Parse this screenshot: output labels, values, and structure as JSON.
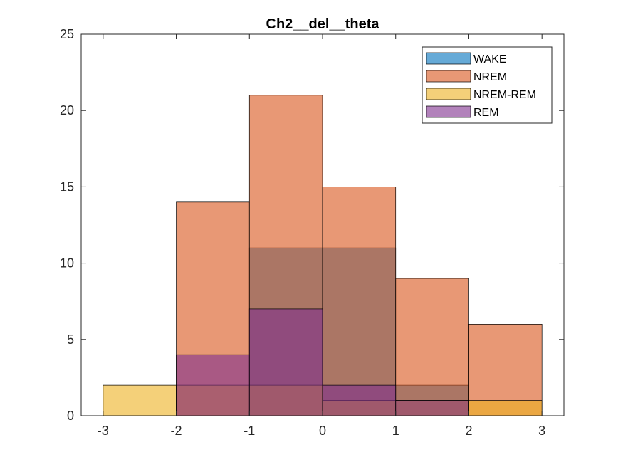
{
  "chart_data": {
    "type": "bar",
    "title": "Ch2__del__theta",
    "xlabel": "",
    "ylabel": "",
    "xlim": [
      -3.3,
      3.3
    ],
    "ylim": [
      0,
      25
    ],
    "xticks": [
      -3,
      -2,
      -1,
      0,
      1,
      2,
      3
    ],
    "yticks": [
      0,
      5,
      10,
      15,
      20,
      25
    ],
    "grid": false,
    "legend_position": "top-right",
    "bin_edges": [
      -3,
      -2,
      -1,
      0,
      1,
      2,
      3
    ],
    "series": [
      {
        "name": "WAKE",
        "color": "#0072BD",
        "values": [
          0,
          0,
          11,
          11,
          2,
          0
        ]
      },
      {
        "name": "NREM",
        "color": "#D95319",
        "values": [
          0,
          14,
          21,
          15,
          9,
          6
        ]
      },
      {
        "name": "NREM-REM",
        "color": "#EDB120",
        "values": [
          2,
          2,
          2,
          1,
          1,
          1
        ]
      },
      {
        "name": "REM",
        "color": "#7E2F8E",
        "values": [
          0,
          4,
          7,
          2,
          1,
          0
        ]
      }
    ]
  }
}
